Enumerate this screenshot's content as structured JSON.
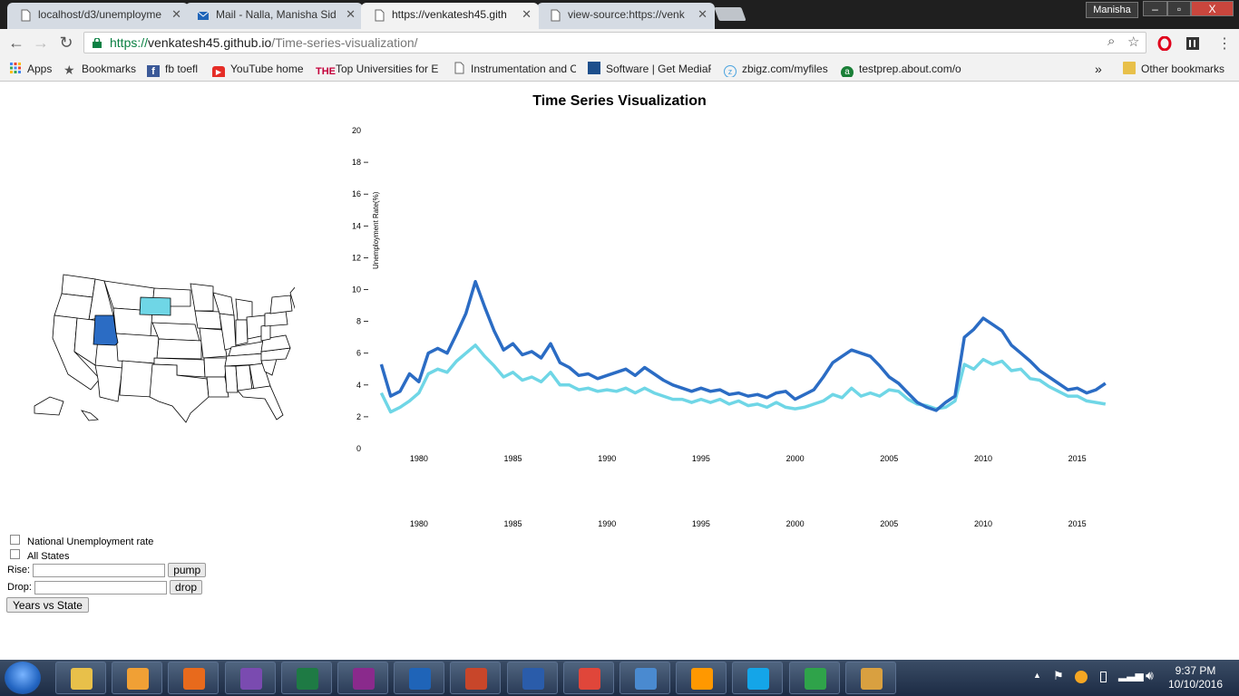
{
  "browser": {
    "tabs": [
      {
        "title": "localhost/d3/unemployme",
        "icon": "page-icon"
      },
      {
        "title": "Mail - Nalla, Manisha Sid",
        "icon": "mail-icon"
      },
      {
        "title": "https://venkatesh45.gith",
        "icon": "page-icon",
        "active": true
      },
      {
        "title": "view-source:https://venk",
        "icon": "page-icon"
      }
    ],
    "profile_name": "Manisha",
    "window_controls": {
      "minimize": "–",
      "maximize": "▫",
      "close": "X"
    },
    "url": {
      "scheme": "https://",
      "host": "venkatesh45.github.io",
      "path": "/Time-series-visualization/"
    },
    "bookmarks": [
      {
        "label": "Apps",
        "icon": "apps-grid-icon"
      },
      {
        "label": "Bookmarks",
        "icon": "star-icon"
      },
      {
        "label": "fb toefl",
        "icon": "facebook-icon"
      },
      {
        "label": "YouTube home",
        "icon": "youtube-icon"
      },
      {
        "label": "Top Universities for Er",
        "icon": "the-icon"
      },
      {
        "label": "Instrumentation and C",
        "icon": "page-icon"
      },
      {
        "label": "Software | Get MediaF",
        "icon": "mediafire-icon"
      },
      {
        "label": "zbigz.com/myfiles",
        "icon": "zbigz-icon"
      },
      {
        "label": "testprep.about.com/o",
        "icon": "about-icon"
      }
    ],
    "overflow_label": "»",
    "other_bookmarks": "Other bookmarks"
  },
  "page": {
    "title": "Time Series Visualization",
    "controls": {
      "national_label": "National Unemployment rate",
      "all_states_label": "All States",
      "rise_label": "Rise:",
      "drop_label": "Drop:",
      "pump_button": "pump",
      "drop_button": "drop",
      "years_button": "Years vs State"
    },
    "map_colors": {
      "highlight_dark": "#2b6cc4",
      "highlight_light": "#6fd6e6"
    }
  },
  "chart_data": {
    "type": "line",
    "title": "",
    "ylabel": "Unemployment Rate(%)",
    "xlabel": "",
    "ylim": [
      0,
      20
    ],
    "y_ticks": [
      0,
      2,
      4,
      6,
      8,
      10,
      12,
      14,
      16,
      18,
      20
    ],
    "xlim": [
      1977.5,
      2016.8
    ],
    "x_ticks": [
      1980,
      1985,
      1990,
      1995,
      2000,
      2005,
      2010,
      2015
    ],
    "series": [
      {
        "color": "#2b6cc4",
        "points": [
          [
            1978.0,
            5.3
          ],
          [
            1978.5,
            3.3
          ],
          [
            1979.0,
            3.6
          ],
          [
            1979.5,
            4.7
          ],
          [
            1980.0,
            4.2
          ],
          [
            1980.5,
            6.0
          ],
          [
            1981.0,
            6.3
          ],
          [
            1981.5,
            6.0
          ],
          [
            1982.0,
            7.2
          ],
          [
            1982.5,
            8.5
          ],
          [
            1983.0,
            10.5
          ],
          [
            1983.5,
            8.9
          ],
          [
            1984.0,
            7.4
          ],
          [
            1984.5,
            6.2
          ],
          [
            1985.0,
            6.6
          ],
          [
            1985.5,
            5.9
          ],
          [
            1986.0,
            6.1
          ],
          [
            1986.5,
            5.7
          ],
          [
            1987.0,
            6.6
          ],
          [
            1987.5,
            5.4
          ],
          [
            1988.0,
            5.1
          ],
          [
            1988.5,
            4.6
          ],
          [
            1989.0,
            4.7
          ],
          [
            1989.5,
            4.4
          ],
          [
            1990.0,
            4.6
          ],
          [
            1990.5,
            4.8
          ],
          [
            1991.0,
            5.0
          ],
          [
            1991.5,
            4.6
          ],
          [
            1992.0,
            5.1
          ],
          [
            1992.5,
            4.7
          ],
          [
            1993.0,
            4.3
          ],
          [
            1993.5,
            4.0
          ],
          [
            1994.0,
            3.8
          ],
          [
            1994.5,
            3.6
          ],
          [
            1995.0,
            3.8
          ],
          [
            1995.5,
            3.6
          ],
          [
            1996.0,
            3.7
          ],
          [
            1996.5,
            3.4
          ],
          [
            1997.0,
            3.5
          ],
          [
            1997.5,
            3.3
          ],
          [
            1998.0,
            3.4
          ],
          [
            1998.5,
            3.2
          ],
          [
            1999.0,
            3.5
          ],
          [
            1999.5,
            3.6
          ],
          [
            2000.0,
            3.1
          ],
          [
            2000.5,
            3.4
          ],
          [
            2001.0,
            3.7
          ],
          [
            2001.5,
            4.5
          ],
          [
            2002.0,
            5.4
          ],
          [
            2002.5,
            5.8
          ],
          [
            2003.0,
            6.2
          ],
          [
            2003.5,
            6.0
          ],
          [
            2004.0,
            5.8
          ],
          [
            2004.5,
            5.2
          ],
          [
            2005.0,
            4.5
          ],
          [
            2005.5,
            4.1
          ],
          [
            2006.0,
            3.5
          ],
          [
            2006.5,
            2.9
          ],
          [
            2007.0,
            2.6
          ],
          [
            2007.5,
            2.4
          ],
          [
            2008.0,
            2.9
          ],
          [
            2008.5,
            3.3
          ],
          [
            2009.0,
            7.0
          ],
          [
            2009.5,
            7.5
          ],
          [
            2010.0,
            8.2
          ],
          [
            2010.5,
            7.8
          ],
          [
            2011.0,
            7.4
          ],
          [
            2011.5,
            6.5
          ],
          [
            2012.0,
            6.0
          ],
          [
            2012.5,
            5.5
          ],
          [
            2013.0,
            4.9
          ],
          [
            2013.5,
            4.5
          ],
          [
            2014.0,
            4.1
          ],
          [
            2014.5,
            3.7
          ],
          [
            2015.0,
            3.8
          ],
          [
            2015.5,
            3.5
          ],
          [
            2016.0,
            3.7
          ],
          [
            2016.5,
            4.1
          ]
        ]
      },
      {
        "color": "#6fd6e6",
        "points": [
          [
            1978.0,
            3.5
          ],
          [
            1978.5,
            2.3
          ],
          [
            1979.0,
            2.6
          ],
          [
            1979.5,
            3.0
          ],
          [
            1980.0,
            3.5
          ],
          [
            1980.5,
            4.7
          ],
          [
            1981.0,
            5.0
          ],
          [
            1981.5,
            4.8
          ],
          [
            1982.0,
            5.5
          ],
          [
            1982.5,
            6.0
          ],
          [
            1983.0,
            6.5
          ],
          [
            1983.5,
            5.8
          ],
          [
            1984.0,
            5.2
          ],
          [
            1984.5,
            4.5
          ],
          [
            1985.0,
            4.8
          ],
          [
            1985.5,
            4.3
          ],
          [
            1986.0,
            4.5
          ],
          [
            1986.5,
            4.2
          ],
          [
            1987.0,
            4.8
          ],
          [
            1987.5,
            4.0
          ],
          [
            1988.0,
            4.0
          ],
          [
            1988.5,
            3.7
          ],
          [
            1989.0,
            3.8
          ],
          [
            1989.5,
            3.6
          ],
          [
            1990.0,
            3.7
          ],
          [
            1990.5,
            3.6
          ],
          [
            1991.0,
            3.8
          ],
          [
            1991.5,
            3.5
          ],
          [
            1992.0,
            3.8
          ],
          [
            1992.5,
            3.5
          ],
          [
            1993.0,
            3.3
          ],
          [
            1993.5,
            3.1
          ],
          [
            1994.0,
            3.1
          ],
          [
            1994.5,
            2.9
          ],
          [
            1995.0,
            3.1
          ],
          [
            1995.5,
            2.9
          ],
          [
            1996.0,
            3.1
          ],
          [
            1996.5,
            2.8
          ],
          [
            1997.0,
            3.0
          ],
          [
            1997.5,
            2.7
          ],
          [
            1998.0,
            2.8
          ],
          [
            1998.5,
            2.6
          ],
          [
            1999.0,
            2.9
          ],
          [
            1999.5,
            2.6
          ],
          [
            2000.0,
            2.5
          ],
          [
            2000.5,
            2.6
          ],
          [
            2001.0,
            2.8
          ],
          [
            2001.5,
            3.0
          ],
          [
            2002.0,
            3.4
          ],
          [
            2002.5,
            3.2
          ],
          [
            2003.0,
            3.8
          ],
          [
            2003.5,
            3.3
          ],
          [
            2004.0,
            3.5
          ],
          [
            2004.5,
            3.3
          ],
          [
            2005.0,
            3.7
          ],
          [
            2005.5,
            3.6
          ],
          [
            2006.0,
            3.1
          ],
          [
            2006.5,
            2.8
          ],
          [
            2007.0,
            2.7
          ],
          [
            2007.5,
            2.5
          ],
          [
            2008.0,
            2.6
          ],
          [
            2008.5,
            3.0
          ],
          [
            2009.0,
            5.3
          ],
          [
            2009.5,
            5.0
          ],
          [
            2010.0,
            5.6
          ],
          [
            2010.5,
            5.3
          ],
          [
            2011.0,
            5.5
          ],
          [
            2011.5,
            4.9
          ],
          [
            2012.0,
            5.0
          ],
          [
            2012.5,
            4.4
          ],
          [
            2013.0,
            4.3
          ],
          [
            2013.5,
            3.9
          ],
          [
            2014.0,
            3.6
          ],
          [
            2014.5,
            3.3
          ],
          [
            2015.0,
            3.3
          ],
          [
            2015.5,
            3.0
          ],
          [
            2016.0,
            2.9
          ],
          [
            2016.5,
            2.8
          ]
        ]
      }
    ]
  },
  "taskbar": {
    "apps": [
      {
        "name": "explorer",
        "color": "#e8c04a"
      },
      {
        "name": "media",
        "color": "#f0a035"
      },
      {
        "name": "firefox",
        "color": "#e86a1c"
      },
      {
        "name": "visual-studio",
        "color": "#7a4bb0"
      },
      {
        "name": "excel",
        "color": "#1e7a44"
      },
      {
        "name": "onenote",
        "color": "#8a2a8c"
      },
      {
        "name": "outlook",
        "color": "#1f64b8"
      },
      {
        "name": "powerpoint",
        "color": "#c8462a"
      },
      {
        "name": "word",
        "color": "#2a5caa"
      },
      {
        "name": "chrome",
        "color": "#e0463a"
      },
      {
        "name": "wordpad",
        "color": "#4a8ad0"
      },
      {
        "name": "sublime",
        "color": "#ff9800"
      },
      {
        "name": "skype",
        "color": "#14a5e8"
      },
      {
        "name": "security",
        "color": "#2fa34a"
      },
      {
        "name": "paint",
        "color": "#d9a040"
      }
    ],
    "time": "9:37 PM",
    "date": "10/10/2016"
  }
}
